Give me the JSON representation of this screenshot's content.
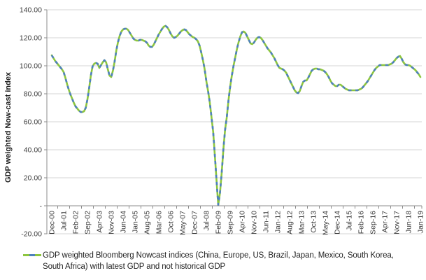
{
  "chart_data": {
    "type": "line",
    "title": "",
    "xlabel": "",
    "ylabel": "GDP weighted Now-cast index",
    "ylim": [
      -20,
      140
    ],
    "ytick_step": 20,
    "ytick_values": [
      140,
      120,
      100,
      80,
      60,
      40,
      20,
      0,
      -20
    ],
    "ytick_labels": [
      "140.00",
      "120.00",
      "100.00",
      "80.00",
      "60.00",
      "40.00",
      "20.00",
      "-",
      "-20.00"
    ],
    "grid": true,
    "legend_position": "bottom-left",
    "x_frequency": "monthly",
    "x_start": "Dec-00",
    "x_end": "Jan-19",
    "xtick_every_n_points": 7,
    "xtick_labels": [
      "Dec-00",
      "Jul-01",
      "Feb-02",
      "Sep-02",
      "Apr-03",
      "Nov-03",
      "Jun-04",
      "Jan-05",
      "Aug-05",
      "Mar-06",
      "Oct-06",
      "May-07",
      "Dec-07",
      "Jul-08",
      "Feb-09",
      "Sep-09",
      "Apr-10",
      "Nov-10",
      "Jun-11",
      "Jan-12",
      "Aug-12",
      "Mar-13",
      "Oct-13",
      "May-14",
      "Dec-14",
      "Jul-15",
      "Feb-16",
      "Sep-16",
      "Apr-17",
      "Nov-17",
      "Jun-18",
      "Jan-19"
    ],
    "series": [
      {
        "name": "GDP weighted Bloomberg Nowcast indices (China, Europe, US, Brazil, Japan, Mexico, South Korea, South Africa) with latest GDP and not historical GDP",
        "line_color": "#8DC63F",
        "overlay_dash_color": "#4F81BD",
        "values": [
          107.5,
          105.5,
          103.5,
          102,
          100.5,
          99,
          97.5,
          95.5,
          91.5,
          87,
          83,
          79.5,
          76.5,
          73.5,
          71,
          69.5,
          68,
          67,
          67,
          67.5,
          70,
          76,
          84,
          93,
          99.5,
          101.5,
          102,
          101.5,
          98.5,
          100.5,
          102.5,
          104,
          102.5,
          97.5,
          93,
          92,
          96.5,
          103,
          111,
          117,
          121.5,
          124.5,
          126,
          126.5,
          126.5,
          125.5,
          123.5,
          121.5,
          119.5,
          118.5,
          118,
          118,
          118.5,
          118.5,
          118,
          117.5,
          116.5,
          114.5,
          113.5,
          113.5,
          115,
          117.5,
          120,
          122.5,
          124.5,
          126.5,
          128,
          128.5,
          127.5,
          125.5,
          123,
          121,
          120,
          120.5,
          121.5,
          123,
          124.5,
          125.5,
          126,
          125.5,
          124,
          122.5,
          121.5,
          120.5,
          120,
          119,
          117.5,
          114.5,
          109.5,
          104,
          97.5,
          89,
          82,
          74,
          63.5,
          53,
          36,
          18,
          0.5,
          9,
          23,
          40,
          54,
          63,
          75,
          85,
          93,
          100,
          106,
          112,
          117,
          121,
          124,
          124.5,
          123.5,
          121,
          118.5,
          116,
          115.5,
          116.5,
          118.5,
          120,
          120.5,
          120,
          118.5,
          116.5,
          114.5,
          112.5,
          111,
          109.5,
          107.5,
          105.5,
          103,
          100.5,
          98.5,
          98,
          97.5,
          96.5,
          95,
          92.5,
          90,
          87.5,
          85,
          82.5,
          81,
          80.5,
          82,
          85.5,
          88.5,
          89.5,
          89.5,
          91.5,
          94,
          96.5,
          97.5,
          98,
          98,
          97.5,
          97.5,
          97,
          96.5,
          95.5,
          94,
          92,
          89.5,
          87.5,
          86.5,
          85.5,
          85.5,
          86.5,
          86.5,
          85.5,
          84.5,
          83.5,
          83,
          82.5,
          82.5,
          82.5,
          82.5,
          82.5,
          82.5,
          83,
          83.5,
          84.5,
          86,
          87.5,
          89,
          91,
          93,
          95,
          97,
          98.5,
          99.5,
          100.5,
          100.5,
          100.5,
          100.5,
          100.5,
          100.5,
          101,
          101.5,
          102.5,
          104,
          105.5,
          106.5,
          107,
          105,
          102.5,
          101,
          100.5,
          100.5,
          100,
          99,
          98,
          97,
          95.5,
          94,
          92
        ]
      }
    ]
  },
  "legend": {
    "label": "GDP weighted Bloomberg Nowcast indices (China, Europe, US, Brazil, Japan, Mexico, South Korea, South Africa) with latest GDP and not historical GDP"
  },
  "colors": {
    "line_green": "#8DC63F",
    "line_blue": "#4F81BD",
    "gridline": "#D6D6D6",
    "axis": "#8C8C8C",
    "tick_text": "#3D3D3D",
    "title_text": "#1a1a1a"
  }
}
